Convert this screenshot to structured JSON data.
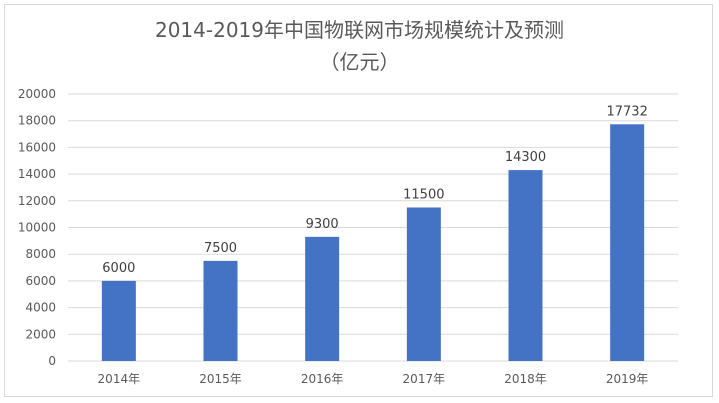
{
  "chart_data": {
    "type": "bar",
    "title_lines": [
      "2014-2019年中国物联网市场规模统计及预测",
      "（亿元）"
    ],
    "categories": [
      "2014年",
      "2015年",
      "2016年",
      "2017年",
      "2018年",
      "2019年"
    ],
    "values": [
      6000,
      7500,
      9300,
      11500,
      14300,
      17732
    ],
    "data_labels": [
      "6000",
      "7500",
      "9300",
      "11500",
      "14300",
      "17732"
    ],
    "y_ticks": [
      "0",
      "2000",
      "4000",
      "6000",
      "8000",
      "10000",
      "12000",
      "14000",
      "16000",
      "18000",
      "20000"
    ],
    "ylim": [
      0,
      20000
    ],
    "grid": true,
    "legend": "none",
    "bar_color": "#4472c4",
    "grid_color": "#d9d9d9"
  }
}
